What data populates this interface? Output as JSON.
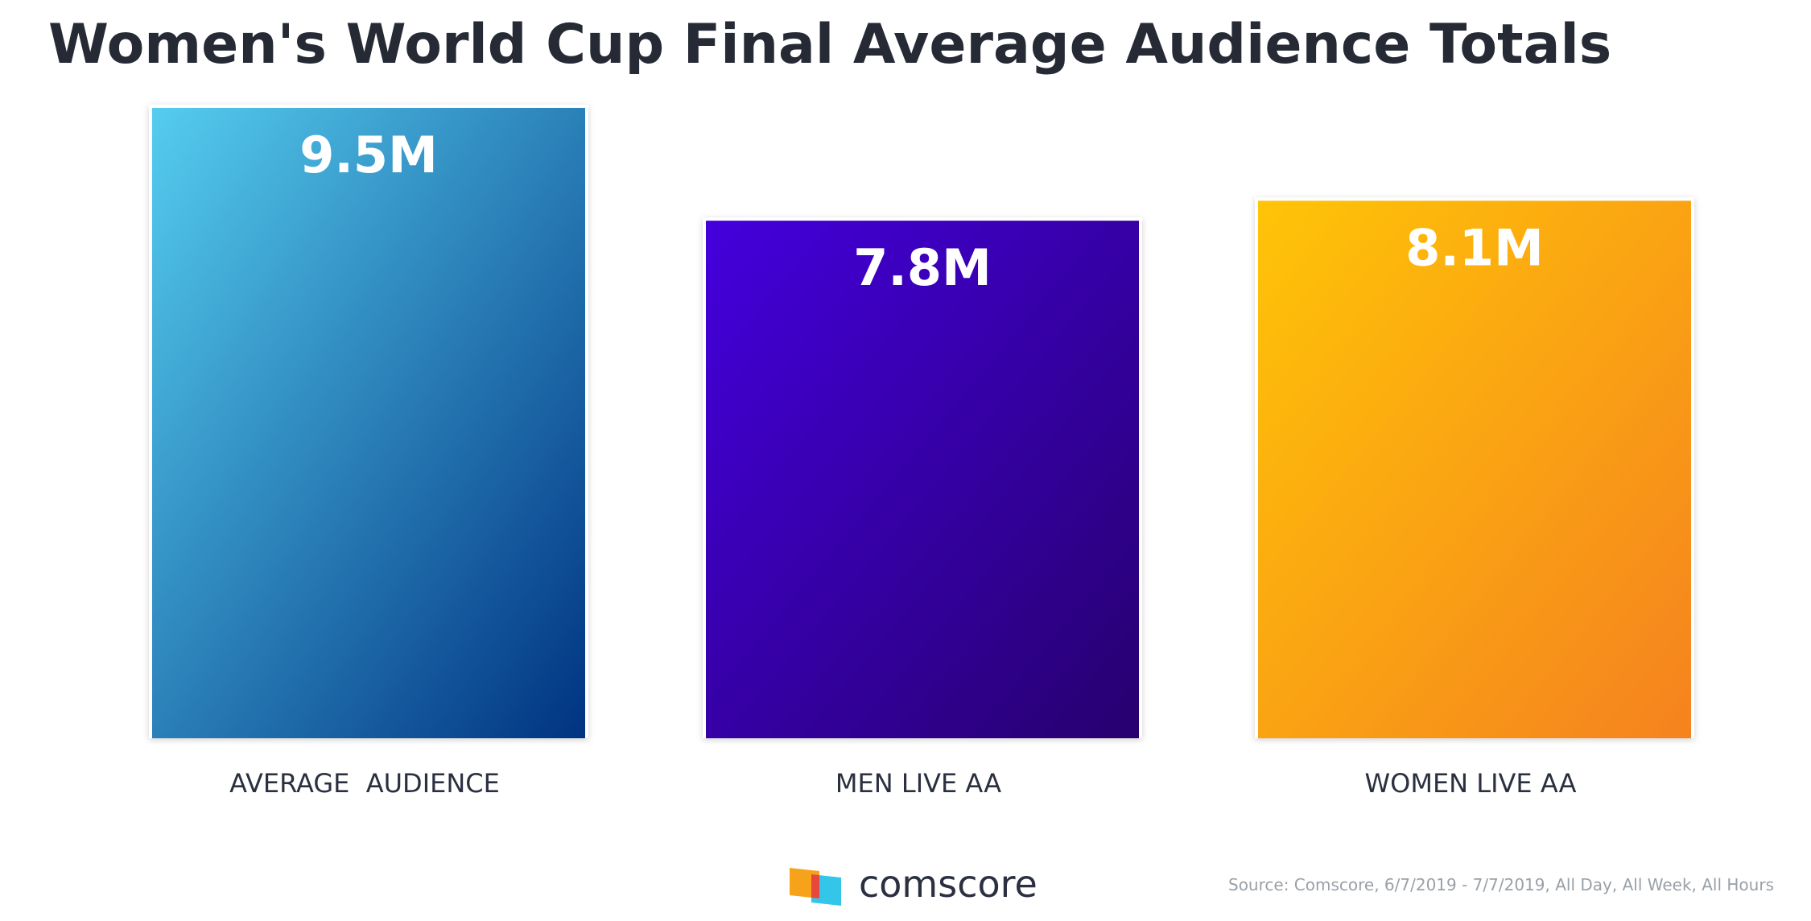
{
  "chart_data": {
    "type": "bar",
    "title": "Women's World Cup Final Average Audience Totals",
    "categories": [
      "AVERAGE  AUDIENCE",
      "MEN LIVE AA",
      "WOMEN LIVE AA"
    ],
    "values": [
      9.5,
      7.8,
      8.1
    ],
    "value_labels": [
      "9.5M",
      "7.8M",
      "8.1M"
    ],
    "colors": [
      [
        "#55cdef",
        "#003381"
      ],
      [
        "#4400dd",
        "#27006e"
      ],
      [
        "#ffc407",
        "#f5821f"
      ]
    ],
    "brand": "comscore",
    "source": "Source: Comscore, 6/7/2019 - 7/7/2019, All Day, All Week, All Hours"
  }
}
